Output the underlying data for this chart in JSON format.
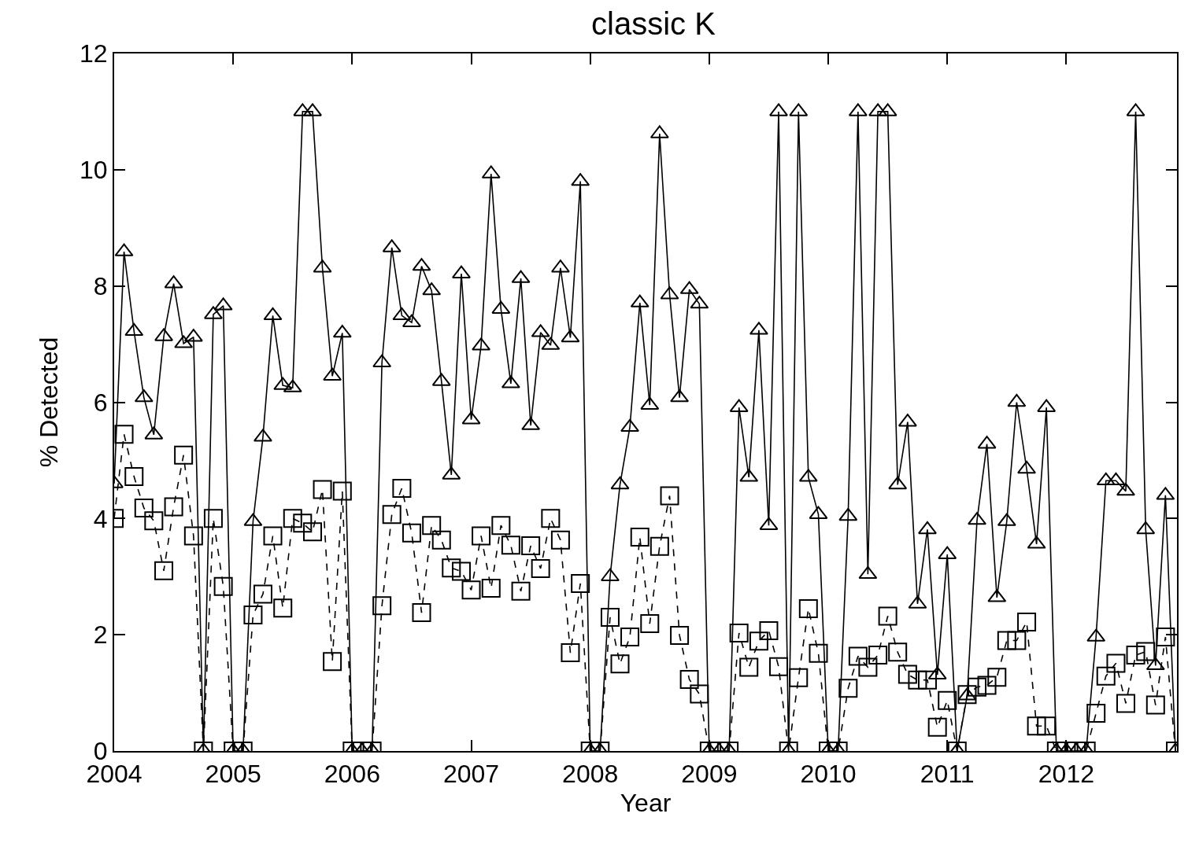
{
  "chart_data": {
    "type": "line",
    "title": "classic K",
    "xlabel": "Year",
    "ylabel": "% Detected",
    "x": [
      2004.0,
      2004.083,
      2004.167,
      2004.25,
      2004.333,
      2004.417,
      2004.5,
      2004.583,
      2004.667,
      2004.75,
      2004.833,
      2004.917,
      2005.0,
      2005.083,
      2005.167,
      2005.25,
      2005.333,
      2005.417,
      2005.5,
      2005.583,
      2005.667,
      2005.75,
      2005.833,
      2005.917,
      2006.0,
      2006.083,
      2006.167,
      2006.25,
      2006.333,
      2006.417,
      2006.5,
      2006.583,
      2006.667,
      2006.75,
      2006.833,
      2006.917,
      2007.0,
      2007.083,
      2007.167,
      2007.25,
      2007.333,
      2007.417,
      2007.5,
      2007.583,
      2007.667,
      2007.75,
      2007.833,
      2007.917,
      2008.0,
      2008.083,
      2008.167,
      2008.25,
      2008.333,
      2008.417,
      2008.5,
      2008.583,
      2008.667,
      2008.75,
      2008.833,
      2008.917,
      2009.0,
      2009.083,
      2009.167,
      2009.25,
      2009.333,
      2009.417,
      2009.5,
      2009.583,
      2009.667,
      2009.75,
      2009.833,
      2009.917,
      2010.0,
      2010.083,
      2010.167,
      2010.25,
      2010.333,
      2010.417,
      2010.5,
      2010.583,
      2010.667,
      2010.75,
      2010.833,
      2010.917,
      2011.0,
      2011.083,
      2011.167,
      2011.25,
      2011.333,
      2011.417,
      2011.5,
      2011.583,
      2011.667,
      2011.75,
      2011.833,
      2011.917,
      2012.0,
      2012.083,
      2012.167,
      2012.25,
      2012.333,
      2012.417,
      2012.5,
      2012.583,
      2012.667,
      2012.75,
      2012.833,
      2012.917
    ],
    "series": [
      {
        "color": "#000000",
        "marker": "triangle",
        "line_style": "solid",
        "values": [
          4.6,
          8.59,
          7.22,
          6.08,
          5.44,
          7.13,
          8.04,
          7.01,
          7.12,
          0,
          7.51,
          7.66,
          0,
          0,
          3.95,
          5.4,
          7.49,
          6.29,
          6.25,
          11,
          11,
          8.31,
          6.45,
          7.19,
          0,
          0,
          0,
          6.68,
          8.66,
          7.49,
          7.37,
          8.34,
          7.92,
          6.36,
          4.75,
          8.21,
          5.7,
          6.97,
          9.93,
          7.6,
          6.32,
          8.13,
          5.6,
          7.2,
          6.98,
          8.31,
          7.11,
          9.8,
          0,
          0,
          3.0,
          4.58,
          5.57,
          7.71,
          5.95,
          10.62,
          7.85,
          6.08,
          7.94,
          7.69,
          0,
          0,
          0,
          5.91,
          4.71,
          7.24,
          3.88,
          11,
          0,
          11,
          4.71,
          4.07,
          0,
          0,
          4.04,
          11,
          3.04,
          11,
          11,
          4.58,
          5.66,
          2.53,
          3.81,
          1.31,
          3.38,
          0,
          0.95,
          3.97,
          5.28,
          2.64,
          3.95,
          6.0,
          4.85,
          3.56,
          5.91,
          0,
          0,
          0,
          0,
          1.96,
          4.65,
          4.65,
          4.47,
          11,
          3.81,
          1.47,
          4.4,
          0
        ]
      },
      {
        "color": "#000000",
        "marker": "square",
        "line_style": "dashed",
        "values": [
          4.0,
          5.45,
          4.72,
          4.18,
          3.96,
          3.1,
          4.2,
          5.09,
          3.7,
          0,
          4.0,
          2.83,
          0,
          0,
          2.34,
          2.7,
          3.7,
          2.46,
          4.0,
          3.92,
          3.77,
          4.5,
          1.54,
          4.47,
          0,
          0,
          0,
          2.5,
          4.07,
          4.52,
          3.75,
          2.38,
          3.88,
          3.63,
          3.15,
          3.09,
          2.77,
          3.7,
          2.8,
          3.88,
          3.54,
          2.75,
          3.53,
          3.14,
          4.0,
          3.63,
          1.69,
          2.88,
          0,
          0,
          2.3,
          1.5,
          1.96,
          3.68,
          2.19,
          3.52,
          4.39,
          1.99,
          1.23,
          0.98,
          0,
          0,
          0,
          2.03,
          1.44,
          1.89,
          2.07,
          1.45,
          0,
          1.26,
          2.45,
          1.68,
          0,
          0,
          1.08,
          1.63,
          1.44,
          1.65,
          2.32,
          1.7,
          1.32,
          1.22,
          1.22,
          0.41,
          0.87,
          0,
          0.97,
          1.1,
          1.13,
          1.27,
          1.9,
          1.9,
          2.22,
          0.43,
          0.43,
          0,
          0,
          0,
          0,
          0.65,
          1.29,
          1.51,
          0.82,
          1.65,
          1.71,
          0.79,
          1.96,
          0
        ]
      }
    ],
    "xlim": [
      2004,
      2012.93
    ],
    "xticks": [
      2004,
      2005,
      2006,
      2007,
      2008,
      2009,
      2010,
      2011,
      2012
    ],
    "ylim": [
      0,
      12
    ],
    "yticks": [
      0,
      2,
      4,
      6,
      8,
      10,
      12
    ]
  }
}
